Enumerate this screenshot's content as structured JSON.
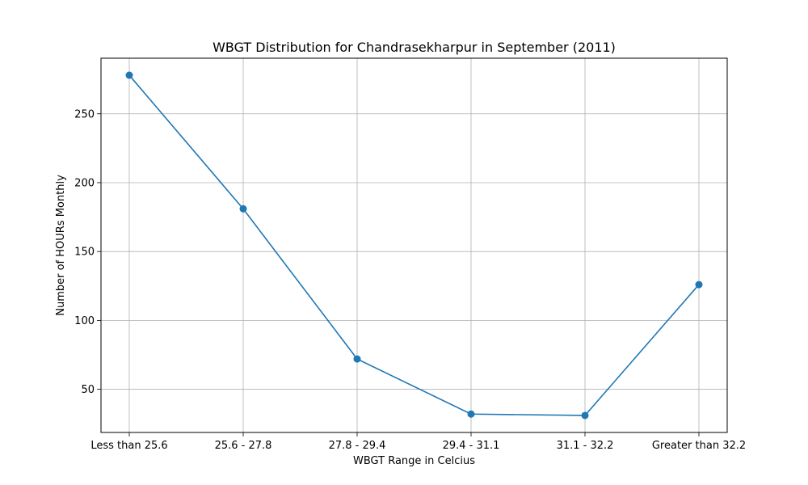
{
  "chart_data": {
    "type": "line",
    "title": "WBGT Distribution for Chandrasekharpur in September (2011)",
    "xlabel": "WBGT Range in Celcius",
    "ylabel": "Number of HOURs Monthly",
    "categories": [
      "Less than 25.6",
      "25.6 - 27.8",
      "27.8 - 29.4",
      "29.4 - 31.1",
      "31.1 - 32.2",
      "Greater than 32.2"
    ],
    "series": [
      {
        "values": [
          278,
          181,
          72,
          32,
          31,
          126
        ],
        "color": "#1f77b4",
        "marker": "circle"
      }
    ],
    "ylim": [
      18.65,
      290.35
    ],
    "yticks": [
      50,
      100,
      150,
      200,
      250
    ],
    "grid": true,
    "legend": "none"
  }
}
